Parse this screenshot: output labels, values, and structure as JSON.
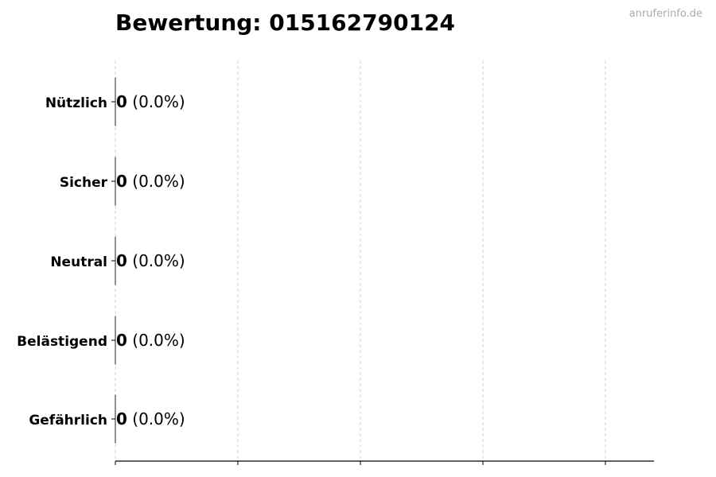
{
  "chart_data": {
    "type": "bar",
    "orientation": "horizontal",
    "title": "Bewertung: 015162790124",
    "categories": [
      "Nützlich",
      "Sicher",
      "Neutral",
      "Belästigend",
      "Gefährlich"
    ],
    "values": [
      0,
      0,
      0,
      0,
      0
    ],
    "data_labels": [
      {
        "count": "0",
        "percent": "(0.0%)"
      },
      {
        "count": "0",
        "percent": "(0.0%)"
      },
      {
        "count": "0",
        "percent": "(0.0%)"
      },
      {
        "count": "0",
        "percent": "(0.0%)"
      },
      {
        "count": "0",
        "percent": "(0.0%)"
      }
    ],
    "xlabel": "",
    "ylabel": "",
    "grid": "vertical dashed",
    "x_tick_labels_shown": false,
    "colors": {
      "grid": "#cccccc",
      "axis": "#000000",
      "text": "#000000"
    }
  },
  "watermark": "anruferinfo.de"
}
